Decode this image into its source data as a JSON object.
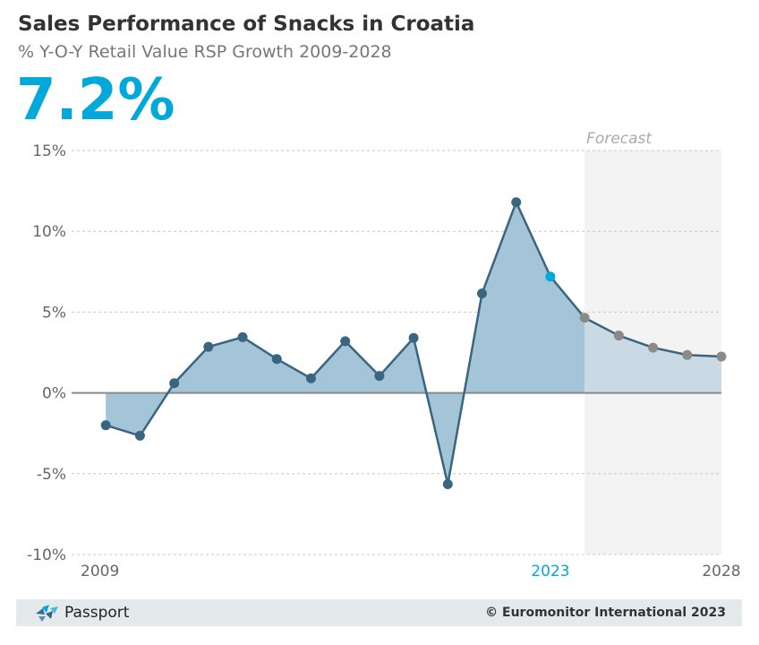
{
  "header": {
    "title": "Sales Performance of Snacks in Croatia",
    "subtitle": "% Y-O-Y Retail Value RSP Growth 2009-2028",
    "headline_value": "7.2%"
  },
  "chart_data": {
    "type": "area",
    "x": [
      2009,
      2010,
      2011,
      2012,
      2013,
      2014,
      2015,
      2016,
      2017,
      2018,
      2019,
      2020,
      2021,
      2022,
      2023,
      2024,
      2025,
      2026,
      2027,
      2028
    ],
    "series": [
      {
        "values": [
          null,
          -2.0,
          -2.65,
          0.6,
          2.85,
          3.45,
          2.1,
          0.9,
          3.2,
          1.05,
          3.4,
          -5.65,
          6.15,
          11.8,
          7.2,
          4.65,
          3.55,
          2.8,
          2.35,
          2.25
        ]
      }
    ],
    "highlight_year": 2023,
    "forecast_start": 2024,
    "forecast_label": "Forecast",
    "ylim": [
      -10,
      15
    ],
    "yticks": [
      15,
      10,
      5,
      0,
      -5,
      -10
    ],
    "ytick_labels": [
      "15%",
      "10%",
      "5%",
      "0%",
      "-5%",
      "-10%"
    ],
    "xtick_labels": [
      {
        "value": 2009,
        "label": "2009"
      },
      {
        "value": 2023,
        "label": "2023",
        "highlight": true
      },
      {
        "value": 2028,
        "label": "2028"
      }
    ],
    "grid": true,
    "colors": {
      "line": "#3a6580",
      "area": "#a4c4d8",
      "area_forecast": "#c9dae5",
      "forecast_bg": "#f3f3f3",
      "highlight": "#00a9d9",
      "forecast_marker": "#8a8a8a",
      "zero_line": "#8a8a8a",
      "grid": "#c8c8c8",
      "tick_text": "#666666"
    }
  },
  "footer": {
    "brand": "Passport",
    "copyright": "© Euromonitor International 2023"
  }
}
